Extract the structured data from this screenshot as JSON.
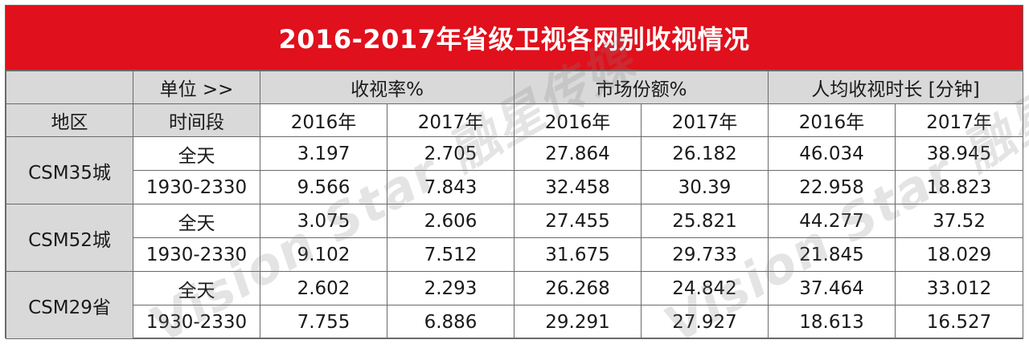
{
  "title": "2016-2017年省级卫视各网别收视情况",
  "header": {
    "unit_label": "单位 >>",
    "region_label": "地区",
    "period_label": "时间段",
    "groups": [
      "收视率%",
      "市场份额%",
      "人均收视时长 [分钟]"
    ],
    "years": [
      "2016年",
      "2017年",
      "2016年",
      "2017年",
      "2016年",
      "2017年"
    ]
  },
  "regions": [
    {
      "name": "CSM35城",
      "rows": [
        {
          "period": "全天",
          "values": [
            "3.197",
            "2.705",
            "27.864",
            "26.182",
            "46.034",
            "38.945"
          ]
        },
        {
          "period": "1930-2330",
          "values": [
            "9.566",
            "7.843",
            "32.458",
            "30.39",
            "22.958",
            "18.823"
          ]
        }
      ]
    },
    {
      "name": "CSM52城",
      "rows": [
        {
          "period": "全天",
          "values": [
            "3.075",
            "2.606",
            "27.455",
            "25.821",
            "44.277",
            "37.52"
          ]
        },
        {
          "period": "1930-2330",
          "values": [
            "9.102",
            "7.512",
            "31.675",
            "29.733",
            "21.845",
            "18.029"
          ]
        }
      ]
    },
    {
      "name": "CSM29省",
      "rows": [
        {
          "period": "全天",
          "values": [
            "2.602",
            "2.293",
            "26.268",
            "24.842",
            "37.464",
            "33.012"
          ]
        },
        {
          "period": "1930-2330",
          "values": [
            "7.755",
            "6.886",
            "29.291",
            "27.927",
            "18.613",
            "16.527"
          ]
        }
      ]
    }
  ],
  "watermark": {
    "text": "Vision Star 融星传媒"
  },
  "colors": {
    "title_bg": "#e0101c",
    "header_bg": "#d9d9d9",
    "highlight": "#e0101c",
    "border": "#6a6a6a"
  }
}
